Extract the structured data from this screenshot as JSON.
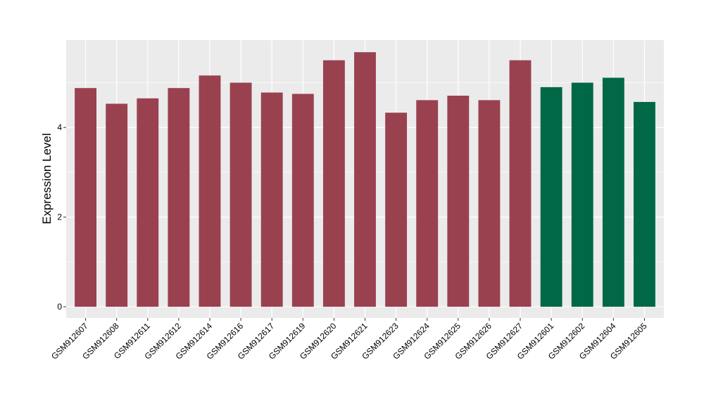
{
  "chart_data": {
    "type": "bar",
    "title": "",
    "xlabel": "",
    "ylabel": "Expression Level",
    "ylim": [
      -0.25,
      5.95
    ],
    "y_ticks": [
      0,
      2,
      4
    ],
    "grid": true,
    "legend": "none",
    "colors": {
      "group_1": "#9a4150",
      "group_2": "#006846",
      "panel_bg": "#ebebeb",
      "grid": "#ffffff"
    },
    "categories": [
      "GSM912607",
      "GSM912608",
      "GSM912611",
      "GSM912612",
      "GSM912614",
      "GSM912616",
      "GSM912617",
      "GSM912619",
      "GSM912620",
      "GSM912621",
      "GSM912623",
      "GSM912624",
      "GSM912625",
      "GSM912626",
      "GSM912627",
      "GSM912601",
      "GSM912602",
      "GSM912604",
      "GSM912605"
    ],
    "values": [
      4.88,
      4.53,
      4.65,
      4.88,
      5.16,
      5.0,
      4.78,
      4.75,
      5.5,
      5.68,
      4.33,
      4.61,
      4.71,
      4.61,
      5.5,
      4.9,
      5.0,
      5.11,
      4.57
    ],
    "groups": [
      1,
      1,
      1,
      1,
      1,
      1,
      1,
      1,
      1,
      1,
      1,
      1,
      1,
      1,
      1,
      2,
      2,
      2,
      2
    ]
  }
}
